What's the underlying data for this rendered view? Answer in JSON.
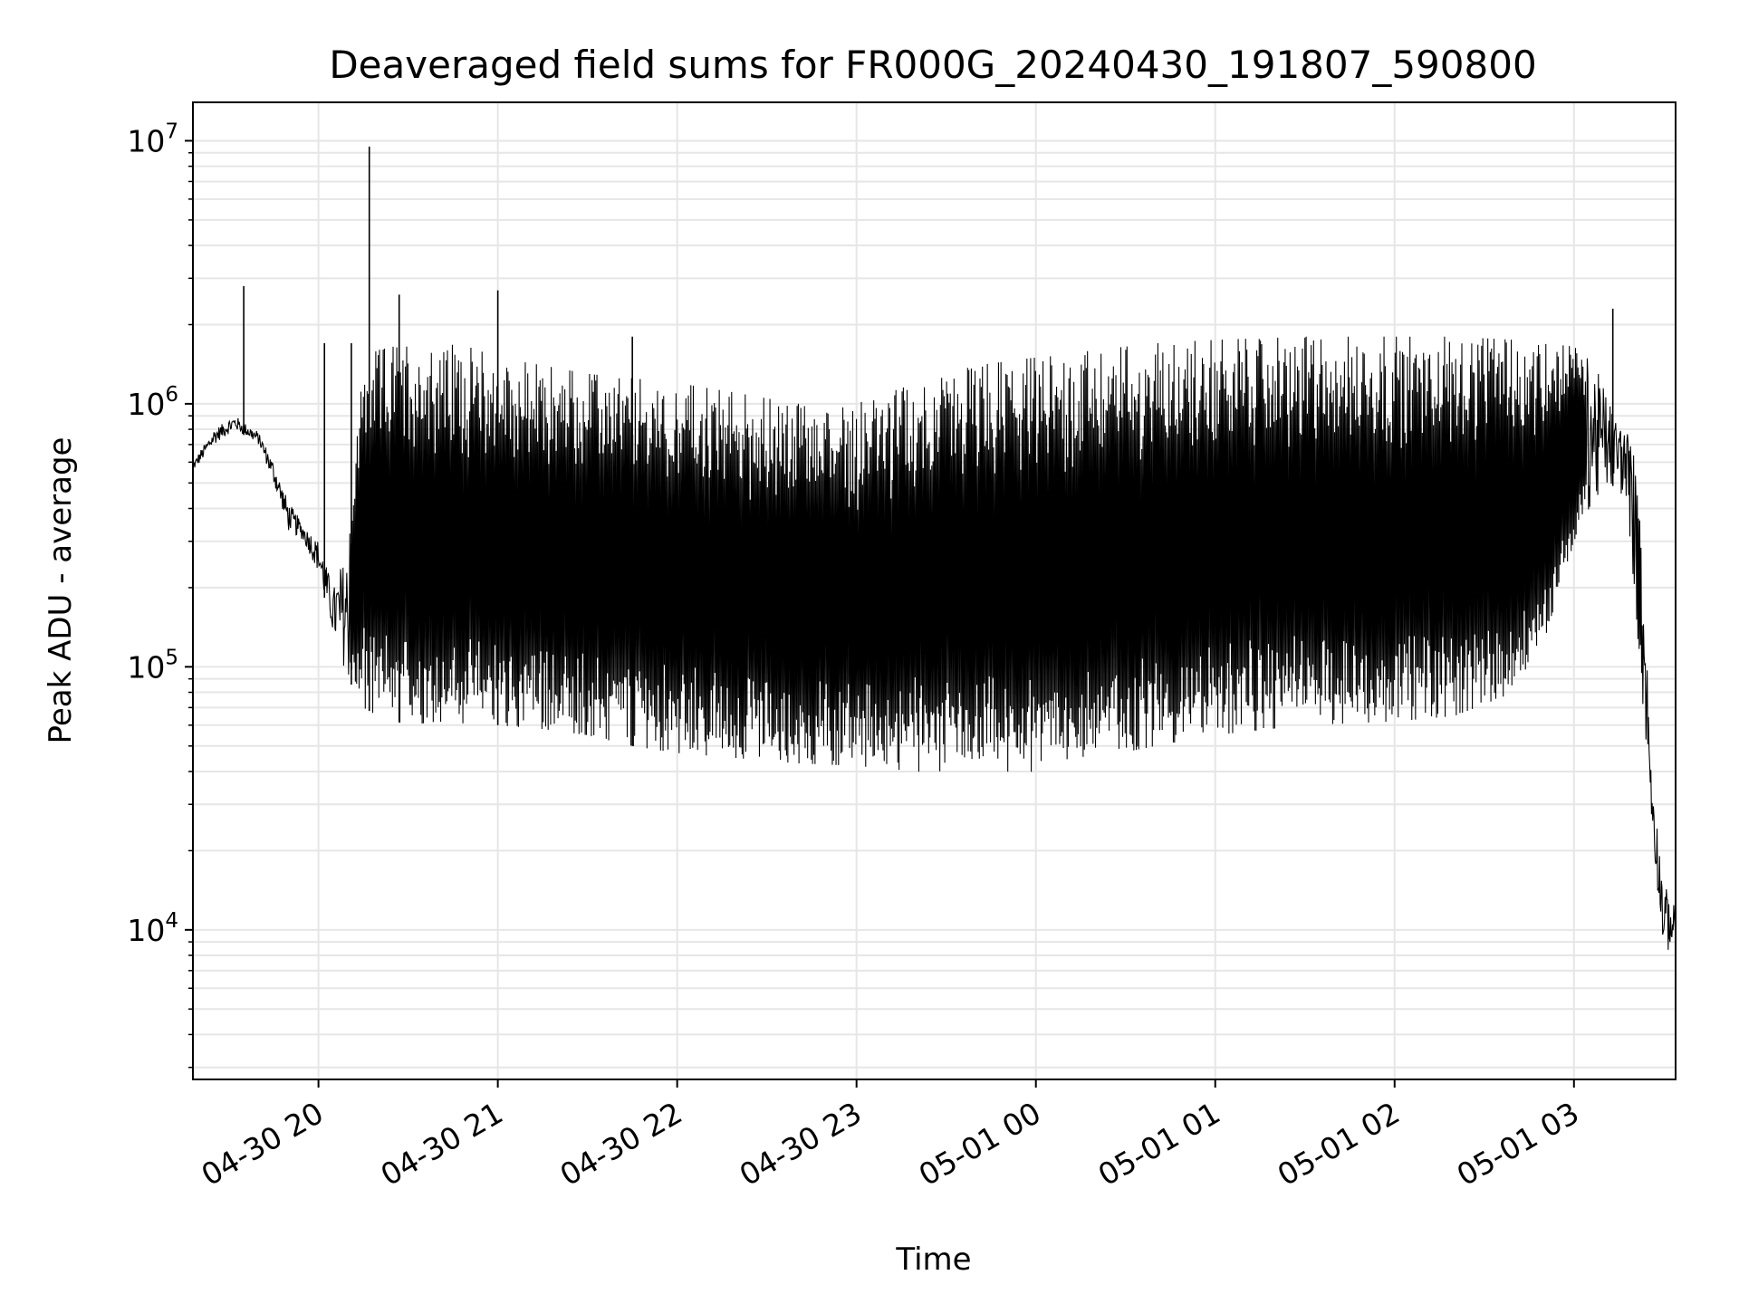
{
  "chart_data": {
    "type": "line",
    "title": "Deaveraged field sums for FR000G_20240430_191807_590800",
    "xlabel": "Time",
    "ylabel": "Peak ADU - average",
    "yscale": "log",
    "ylim": [
      2700,
      14000000
    ],
    "xlim": [
      "2024-04-30 19:18",
      "2024-05-01 03:34"
    ],
    "grid": true,
    "line_color": "#000000",
    "x_ticks": [
      {
        "label": "04-30 20",
        "time": "2024-04-30 20:00"
      },
      {
        "label": "04-30 21",
        "time": "2024-04-30 21:00"
      },
      {
        "label": "04-30 22",
        "time": "2024-04-30 22:00"
      },
      {
        "label": "04-30 23",
        "time": "2024-04-30 23:00"
      },
      {
        "label": "05-01 00",
        "time": "2024-05-01 00:00"
      },
      {
        "label": "05-01 01",
        "time": "2024-05-01 01:00"
      },
      {
        "label": "05-01 02",
        "time": "2024-05-01 02:00"
      },
      {
        "label": "05-01 03",
        "time": "2024-05-01 03:00"
      }
    ],
    "y_ticks": [
      {
        "base": "10",
        "exp": "4",
        "value": 10000
      },
      {
        "base": "10",
        "exp": "5",
        "value": 100000
      },
      {
        "base": "10",
        "exp": "6",
        "value": 1000000
      },
      {
        "base": "10",
        "exp": "7",
        "value": 10000000
      }
    ],
    "series": [
      {
        "x": [
          "2024-04-30 19:18",
          "2024-04-30 19:25",
          "2024-04-30 19:32",
          "2024-04-30 19:40",
          "2024-04-30 19:45",
          "2024-04-30 19:50",
          "2024-04-30 19:55",
          "2024-04-30 20:00",
          "2024-04-30 20:05",
          "2024-04-30 20:10",
          "2024-04-30 20:15",
          "2024-04-30 20:20",
          "2024-04-30 20:30",
          "2024-04-30 20:40",
          "2024-04-30 20:50",
          "2024-04-30 21:00",
          "2024-04-30 21:15",
          "2024-04-30 21:30",
          "2024-04-30 21:45",
          "2024-04-30 22:00",
          "2024-04-30 22:20",
          "2024-04-30 22:40",
          "2024-04-30 23:00",
          "2024-04-30 23:20",
          "2024-04-30 23:40",
          "2024-05-01 00:00",
          "2024-05-01 00:20",
          "2024-05-01 00:40",
          "2024-05-01 01:00",
          "2024-05-01 01:30",
          "2024-05-01 02:00",
          "2024-05-01 02:20",
          "2024-05-01 02:40",
          "2024-05-01 02:50",
          "2024-05-01 03:00",
          "2024-05-01 03:05",
          "2024-05-01 03:10",
          "2024-05-01 03:14",
          "2024-05-01 03:18",
          "2024-05-01 03:22",
          "2024-05-01 03:26",
          "2024-05-01 03:30",
          "2024-05-01 03:34"
        ],
        "low": [
          550000,
          700000,
          800000,
          700000,
          500000,
          330000,
          300000,
          230000,
          130000,
          90000,
          70000,
          65000,
          60000,
          62000,
          60000,
          60000,
          58000,
          55000,
          50000,
          47000,
          45000,
          43000,
          42000,
          40000,
          39000,
          40000,
          45000,
          50000,
          55000,
          60000,
          62000,
          65000,
          80000,
          120000,
          300000,
          400000,
          450000,
          500000,
          400000,
          100000,
          25000,
          8000,
          9000
        ],
        "high": [
          600000,
          800000,
          900000,
          780000,
          600000,
          420000,
          350000,
          300000,
          200000,
          300000,
          1500000,
          1600000,
          1700000,
          1700000,
          1650000,
          1500000,
          1400000,
          1300000,
          1250000,
          1200000,
          1100000,
          1000000,
          1000000,
          1200000,
          1400000,
          1500000,
          1600000,
          1700000,
          1750000,
          1800000,
          1800000,
          1800000,
          1750000,
          1700000,
          1650000,
          1500000,
          1200000,
          900000,
          800000,
          500000,
          40000,
          15000,
          12000
        ]
      }
    ],
    "spikes": [
      {
        "time": "2024-04-30 19:35",
        "value": 2800000
      },
      {
        "time": "2024-04-30 20:02",
        "value": 1700000
      },
      {
        "time": "2024-04-30 20:11",
        "value": 1700000
      },
      {
        "time": "2024-04-30 20:17",
        "value": 9500000
      },
      {
        "time": "2024-04-30 20:27",
        "value": 2600000
      },
      {
        "time": "2024-04-30 21:00",
        "value": 2700000
      },
      {
        "time": "2024-04-30 21:45",
        "value": 1800000
      },
      {
        "time": "2024-05-01 03:13",
        "value": 2300000
      }
    ]
  }
}
